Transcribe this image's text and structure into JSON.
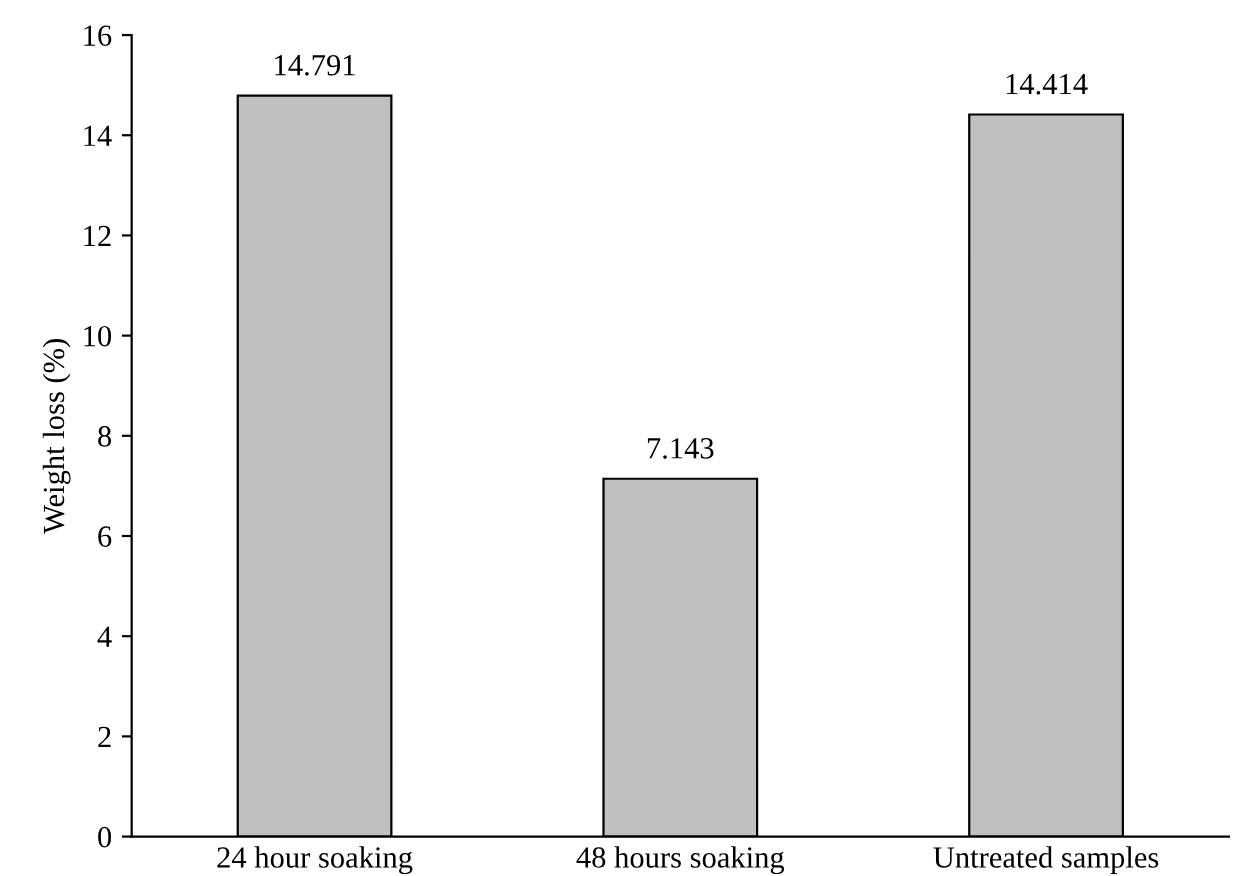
{
  "chart_data": {
    "type": "bar",
    "ylabel": "Weight loss (%)",
    "categories": [
      "24 hour soaking",
      "48 hours soaking",
      "Untreated samples"
    ],
    "values": [
      14.791,
      7.143,
      14.414
    ],
    "color": "#c0c0c0",
    "ylim": [
      0,
      16
    ],
    "yticks": [
      0,
      2,
      4,
      6,
      8,
      10,
      12,
      14,
      16
    ],
    "data_labels": true,
    "grid": false,
    "legend": false
  }
}
